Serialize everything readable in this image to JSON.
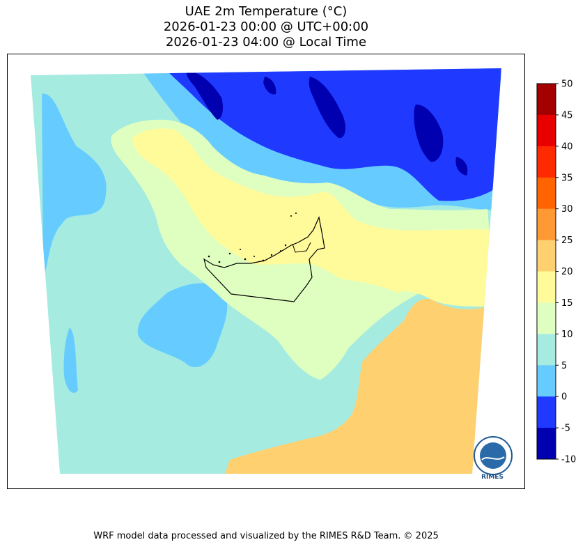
{
  "title": {
    "line1": "UAE 2m Temperature (°C)",
    "line2": "2026-01-23 00:00 @ UTC+00:00",
    "line3": "2026-01-23 04:00 @ Local Time"
  },
  "colorbar": {
    "ticks": [
      "50",
      "45",
      "40",
      "35",
      "30",
      "25",
      "20",
      "15",
      "10",
      "5",
      "0",
      "-5",
      "-10"
    ],
    "bins": [
      {
        "range": [
          45,
          50
        ],
        "color": "#a50000"
      },
      {
        "range": [
          40,
          45
        ],
        "color": "#e80000"
      },
      {
        "range": [
          35,
          40
        ],
        "color": "#ff2a00"
      },
      {
        "range": [
          30,
          35
        ],
        "color": "#ff6400"
      },
      {
        "range": [
          25,
          30
        ],
        "color": "#ff9933"
      },
      {
        "range": [
          20,
          25
        ],
        "color": "#ffd070"
      },
      {
        "range": [
          15,
          20
        ],
        "color": "#fffa9a"
      },
      {
        "range": [
          10,
          15
        ],
        "color": "#dfffc0"
      },
      {
        "range": [
          5,
          10
        ],
        "color": "#a6ebe0"
      },
      {
        "range": [
          0,
          5
        ],
        "color": "#66ccff"
      },
      {
        "range": [
          -5,
          0
        ],
        "color": "#1f39ff"
      },
      {
        "range": [
          -10,
          -5
        ],
        "color": "#0000b0"
      }
    ]
  },
  "logo": {
    "text": "RIMES"
  },
  "footer": {
    "credit": "WRF model data processed and visualized by the RIMES R&D Team. © 2025"
  }
}
